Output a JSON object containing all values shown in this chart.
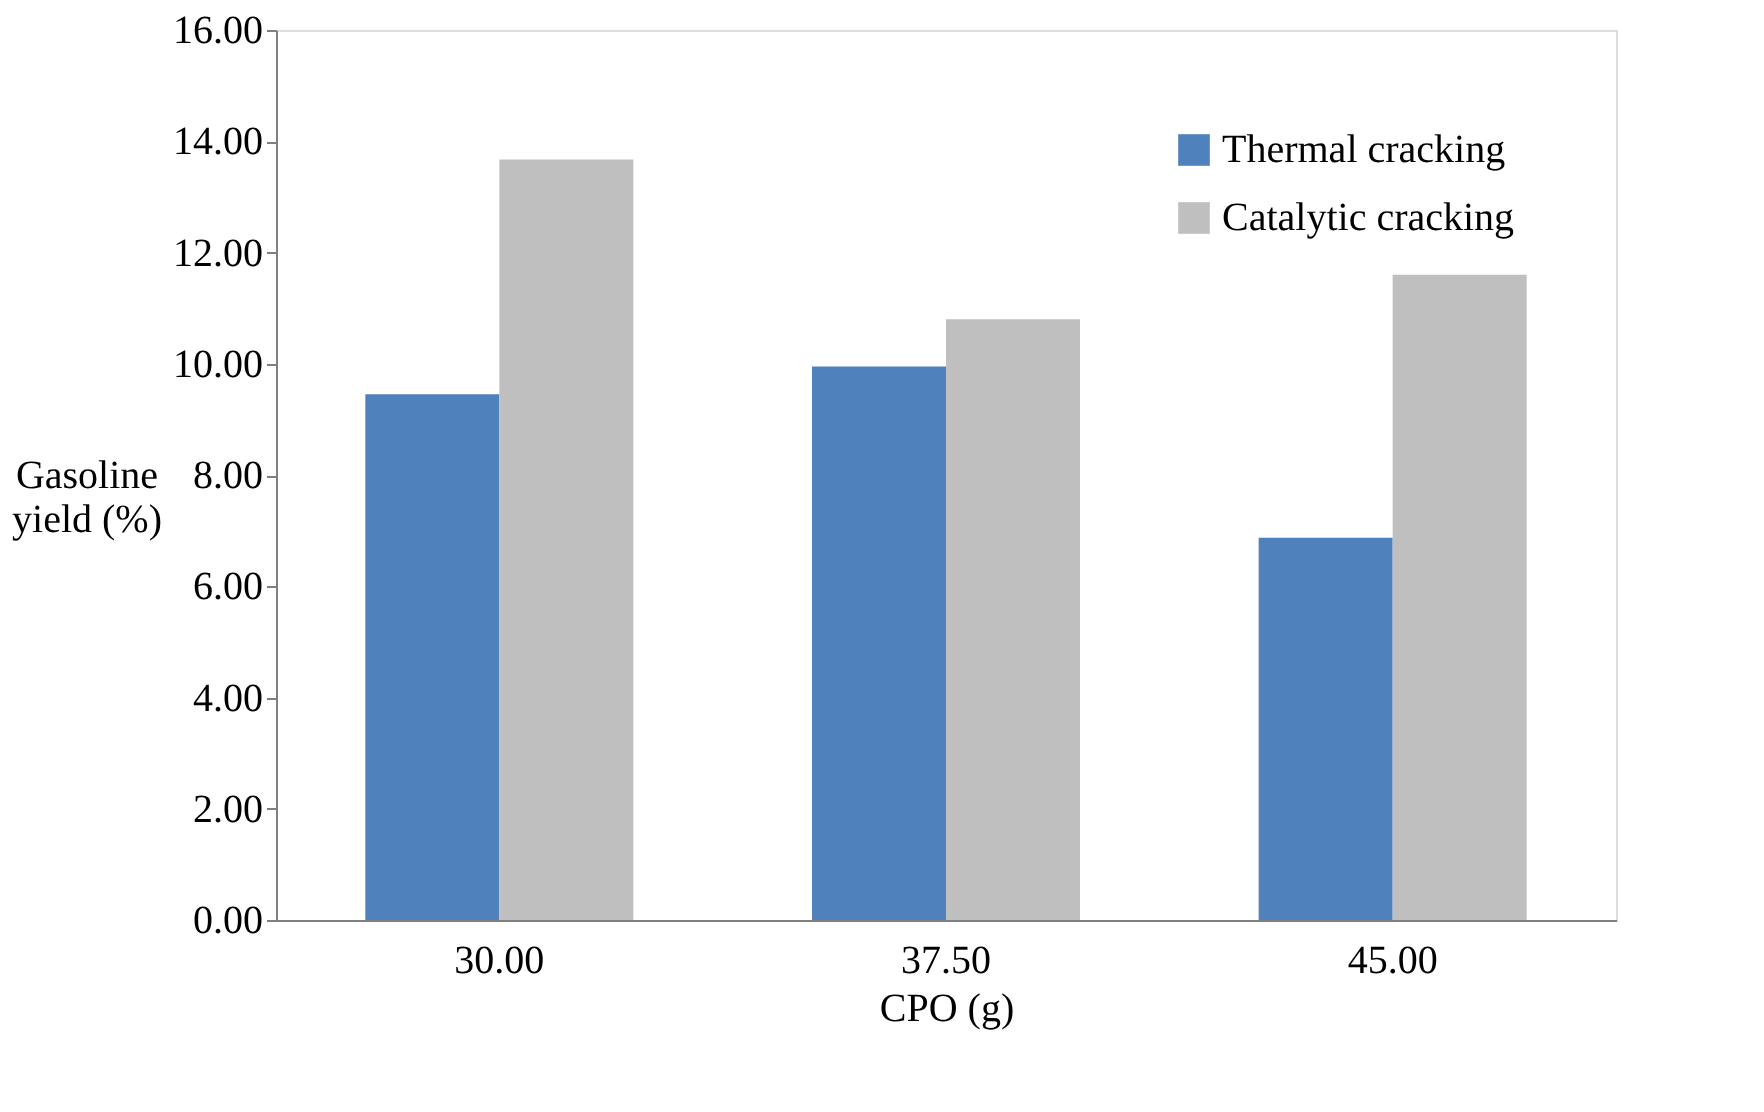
{
  "chart_data": {
    "type": "bar",
    "xlabel": "CPO (g)",
    "ylabel": "Gasoline yield (%)",
    "categories": [
      "30.00",
      "37.50",
      "45.00"
    ],
    "series": [
      {
        "name": "Thermal cracking",
        "color": "#4f81bd",
        "values": [
          9.45,
          9.95,
          6.87
        ]
      },
      {
        "name": "Catalytic cracking",
        "color": "#bfbfbf",
        "values": [
          13.67,
          10.8,
          11.6
        ]
      }
    ],
    "ylim": [
      0,
      16
    ],
    "yticks": [
      {
        "value": 0,
        "label": "0.00"
      },
      {
        "value": 2,
        "label": "2.00"
      },
      {
        "value": 4,
        "label": "4.00"
      },
      {
        "value": 6,
        "label": "6.00"
      },
      {
        "value": 8,
        "label": "8.00"
      },
      {
        "value": 10,
        "label": "10.00"
      },
      {
        "value": 12,
        "label": "12.00"
      },
      {
        "value": 14,
        "label": "14.00"
      },
      {
        "value": 16,
        "label": "16.00"
      }
    ],
    "grid": false,
    "legend": "top right"
  }
}
